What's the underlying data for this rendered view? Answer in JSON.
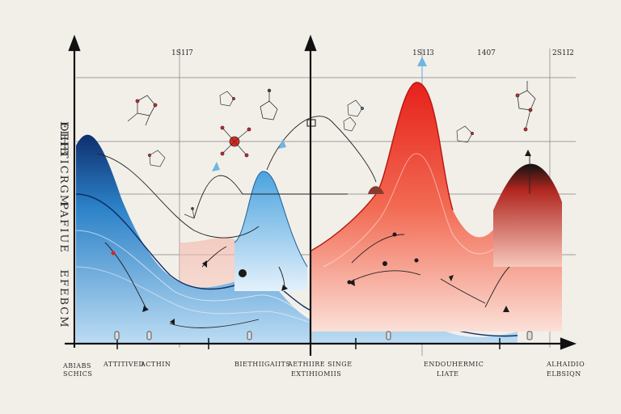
{
  "top_labels": [
    "1S1I7",
    "1S1I3",
    "1407",
    "2S1I2"
  ],
  "side_labels": [
    "EIHB",
    "OEFTICRGM",
    "PAFIUE",
    "EFEBCM"
  ],
  "bottom_labels": {
    "b1_line1": "ABIABS",
    "b1_line2": "SCHICS",
    "b2": "ATTITIVED",
    "b3": "ACTHIN",
    "b4": "BIETHIIGAIITS",
    "b5_line1": "AETHIIRE SINGE",
    "b5_line2": "EXTIHIOMIIS",
    "b6_line1": "ENDOUHERMIC",
    "b6_line2": "LIATE",
    "b7_line1": "ALHAIDIO",
    "b7_line2": "ELBSIQN"
  },
  "colors": {
    "background": "#f2efe9",
    "blue": "#2f86c9",
    "red": "#e8322a",
    "ink": "#1a1a1a"
  }
}
